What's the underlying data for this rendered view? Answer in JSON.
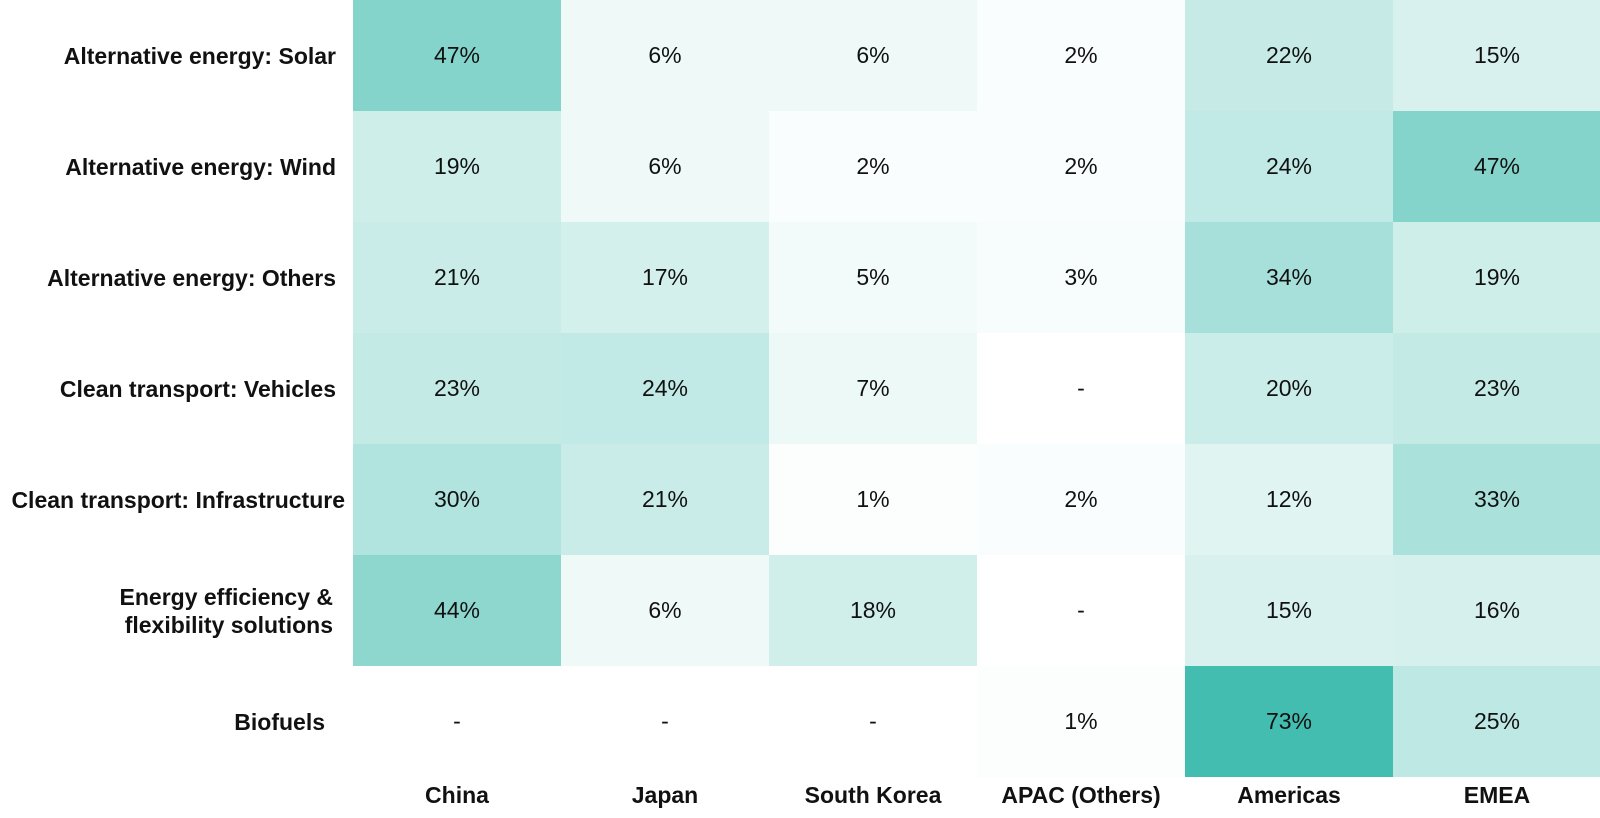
{
  "chart_data": {
    "type": "heatmap",
    "title": "",
    "xlabel": "",
    "ylabel": "",
    "rows": [
      "Alternative energy: Solar",
      "Alternative energy: Wind",
      "Alternative energy: Others",
      "Clean transport: Vehicles",
      "Clean transport: Infrastructure",
      "Energy efficiency &\nflexibility solutions",
      "Biofuels"
    ],
    "columns": [
      "China",
      "Japan",
      "South Korea",
      "APAC (Others)",
      "Americas",
      "EMEA"
    ],
    "values": [
      [
        47,
        6,
        6,
        2,
        22,
        15
      ],
      [
        19,
        6,
        2,
        2,
        24,
        47
      ],
      [
        21,
        17,
        5,
        3,
        34,
        19
      ],
      [
        23,
        24,
        7,
        null,
        20,
        23
      ],
      [
        30,
        21,
        1,
        2,
        12,
        33
      ],
      [
        44,
        6,
        18,
        null,
        15,
        16
      ],
      [
        null,
        null,
        null,
        1,
        73,
        25
      ]
    ],
    "value_unit": "%",
    "missing_label": "-",
    "color_scale": {
      "min_color": "#ffffff",
      "max_color": "#3dbbad",
      "min_value": 0,
      "max_value": 75
    },
    "legend": "none",
    "grid": false
  }
}
